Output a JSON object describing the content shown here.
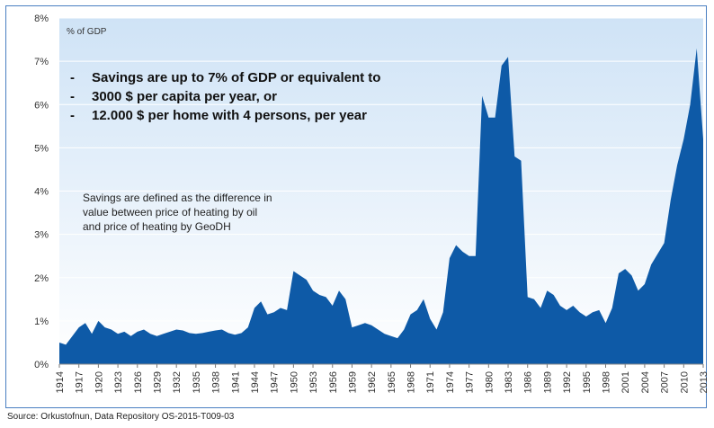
{
  "annotations": {
    "unit_label": "% of GDP",
    "bullets": [
      "Savings are up to 7% of GDP or equivalent to",
      "3000 $ per capita per year, or",
      "12.000 $ per home with 4 persons, per year"
    ],
    "note_lines": [
      "Savings are defined as the difference in",
      "value between price of heating by oil",
      "and price of heating by GeoDH"
    ]
  },
  "source": "Source: Orkustofnun, Data Repository OS-2015-T009-03",
  "chart_data": {
    "type": "area",
    "title": "",
    "xlabel": "",
    "ylabel": "% of GDP",
    "ylim": [
      0,
      8
    ],
    "xlim": [
      1914,
      2013
    ],
    "grid": true,
    "legend": "none",
    "color": "#0e5aa7",
    "y_ticks": [
      "0%",
      "1%",
      "2%",
      "3%",
      "4%",
      "5%",
      "6%",
      "7%",
      "8%"
    ],
    "x_ticks": [
      "1914",
      "1917",
      "1920",
      "1923",
      "1926",
      "1929",
      "1932",
      "1935",
      "1938",
      "1941",
      "1944",
      "1947",
      "1950",
      "1953",
      "1956",
      "1959",
      "1962",
      "1965",
      "1968",
      "1971",
      "1974",
      "1977",
      "1980",
      "1983",
      "1986",
      "1989",
      "1992",
      "1995",
      "1998",
      "2001",
      "2004",
      "2007",
      "2010",
      "2013"
    ],
    "x": [
      1914,
      1915,
      1916,
      1917,
      1918,
      1919,
      1920,
      1921,
      1922,
      1923,
      1924,
      1925,
      1926,
      1927,
      1928,
      1929,
      1930,
      1931,
      1932,
      1933,
      1934,
      1935,
      1936,
      1937,
      1938,
      1939,
      1940,
      1941,
      1942,
      1943,
      1944,
      1945,
      1946,
      1947,
      1948,
      1949,
      1950,
      1951,
      1952,
      1953,
      1954,
      1955,
      1956,
      1957,
      1958,
      1959,
      1960,
      1961,
      1962,
      1963,
      1964,
      1965,
      1966,
      1967,
      1968,
      1969,
      1970,
      1971,
      1972,
      1973,
      1974,
      1975,
      1976,
      1977,
      1978,
      1979,
      1980,
      1981,
      1982,
      1983,
      1984,
      1985,
      1986,
      1987,
      1988,
      1989,
      1990,
      1991,
      1992,
      1993,
      1994,
      1995,
      1996,
      1997,
      1998,
      1999,
      2000,
      2001,
      2002,
      2003,
      2004,
      2005,
      2006,
      2007,
      2008,
      2009,
      2010,
      2011,
      2012,
      2013
    ],
    "values": [
      0.5,
      0.45,
      0.65,
      0.85,
      0.95,
      0.7,
      1.0,
      0.85,
      0.8,
      0.7,
      0.75,
      0.65,
      0.75,
      0.8,
      0.7,
      0.65,
      0.7,
      0.75,
      0.8,
      0.78,
      0.72,
      0.7,
      0.72,
      0.75,
      0.78,
      0.8,
      0.72,
      0.68,
      0.72,
      0.85,
      1.3,
      1.45,
      1.15,
      1.2,
      1.3,
      1.25,
      2.15,
      2.05,
      1.95,
      1.7,
      1.6,
      1.55,
      1.35,
      1.7,
      1.5,
      0.85,
      0.9,
      0.95,
      0.9,
      0.8,
      0.7,
      0.65,
      0.6,
      0.8,
      1.15,
      1.25,
      1.5,
      1.05,
      0.8,
      1.2,
      2.45,
      2.75,
      2.6,
      2.5,
      2.5,
      6.2,
      5.7,
      5.7,
      6.9,
      7.1,
      4.8,
      4.7,
      1.55,
      1.5,
      1.3,
      1.7,
      1.6,
      1.35,
      1.25,
      1.35,
      1.2,
      1.1,
      1.2,
      1.25,
      0.95,
      1.3,
      2.1,
      2.2,
      2.05,
      1.7,
      1.85,
      2.3,
      2.55,
      2.8,
      3.8,
      4.6,
      5.2,
      6.0,
      7.3,
      5.2
    ]
  }
}
